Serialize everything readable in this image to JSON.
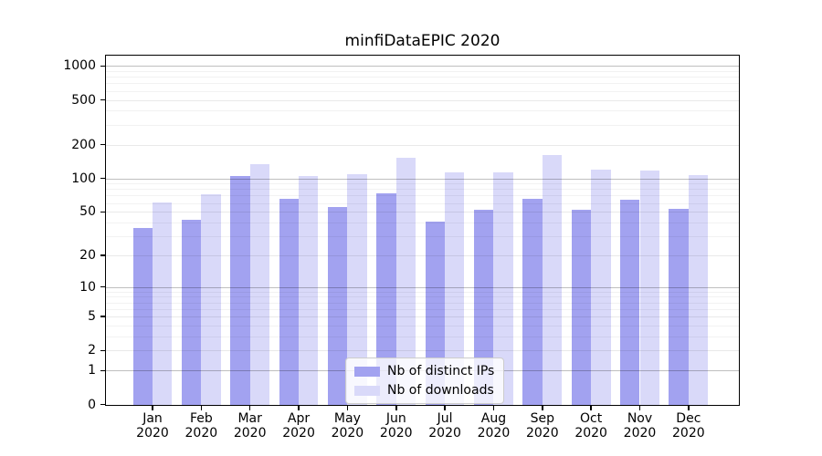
{
  "title": "minfiDataEPIC 2020",
  "chart_data": {
    "type": "bar",
    "title": "minfiDataEPIC 2020",
    "categories": [
      "Jan",
      "Feb",
      "Mar",
      "Apr",
      "May",
      "Jun",
      "Jul",
      "Aug",
      "Sep",
      "Oct",
      "Nov",
      "Dec"
    ],
    "category_year": "2020",
    "series": [
      {
        "name": "Nb of distinct IPs",
        "color": "#a2a2f0",
        "values": [
          36,
          42,
          105,
          65,
          55,
          74,
          41,
          52,
          66,
          52,
          64,
          53
        ]
      },
      {
        "name": "Nb of downloads",
        "color": "#d9d9f9",
        "values": [
          61,
          72,
          134,
          105,
          109,
          154,
          114,
          113,
          161,
          120,
          118,
          107
        ]
      }
    ],
    "xlabel": "",
    "ylabel": "",
    "yscale": "log1p",
    "ylim": [
      0,
      1250
    ],
    "yticks": [
      0,
      1,
      2,
      5,
      10,
      20,
      50,
      100,
      200,
      500,
      1000
    ],
    "ytick_major": [
      1,
      10,
      100,
      1000
    ],
    "grid": true,
    "legend_position": "lower center",
    "colors": {
      "grid_major": "rgba(0,0,0,0.25)",
      "grid_labeled": "rgba(0,0,0,0.085)",
      "grid_minor": "rgba(0,0,0,0.05)",
      "axis": "#000000",
      "background": "#ffffff"
    }
  }
}
